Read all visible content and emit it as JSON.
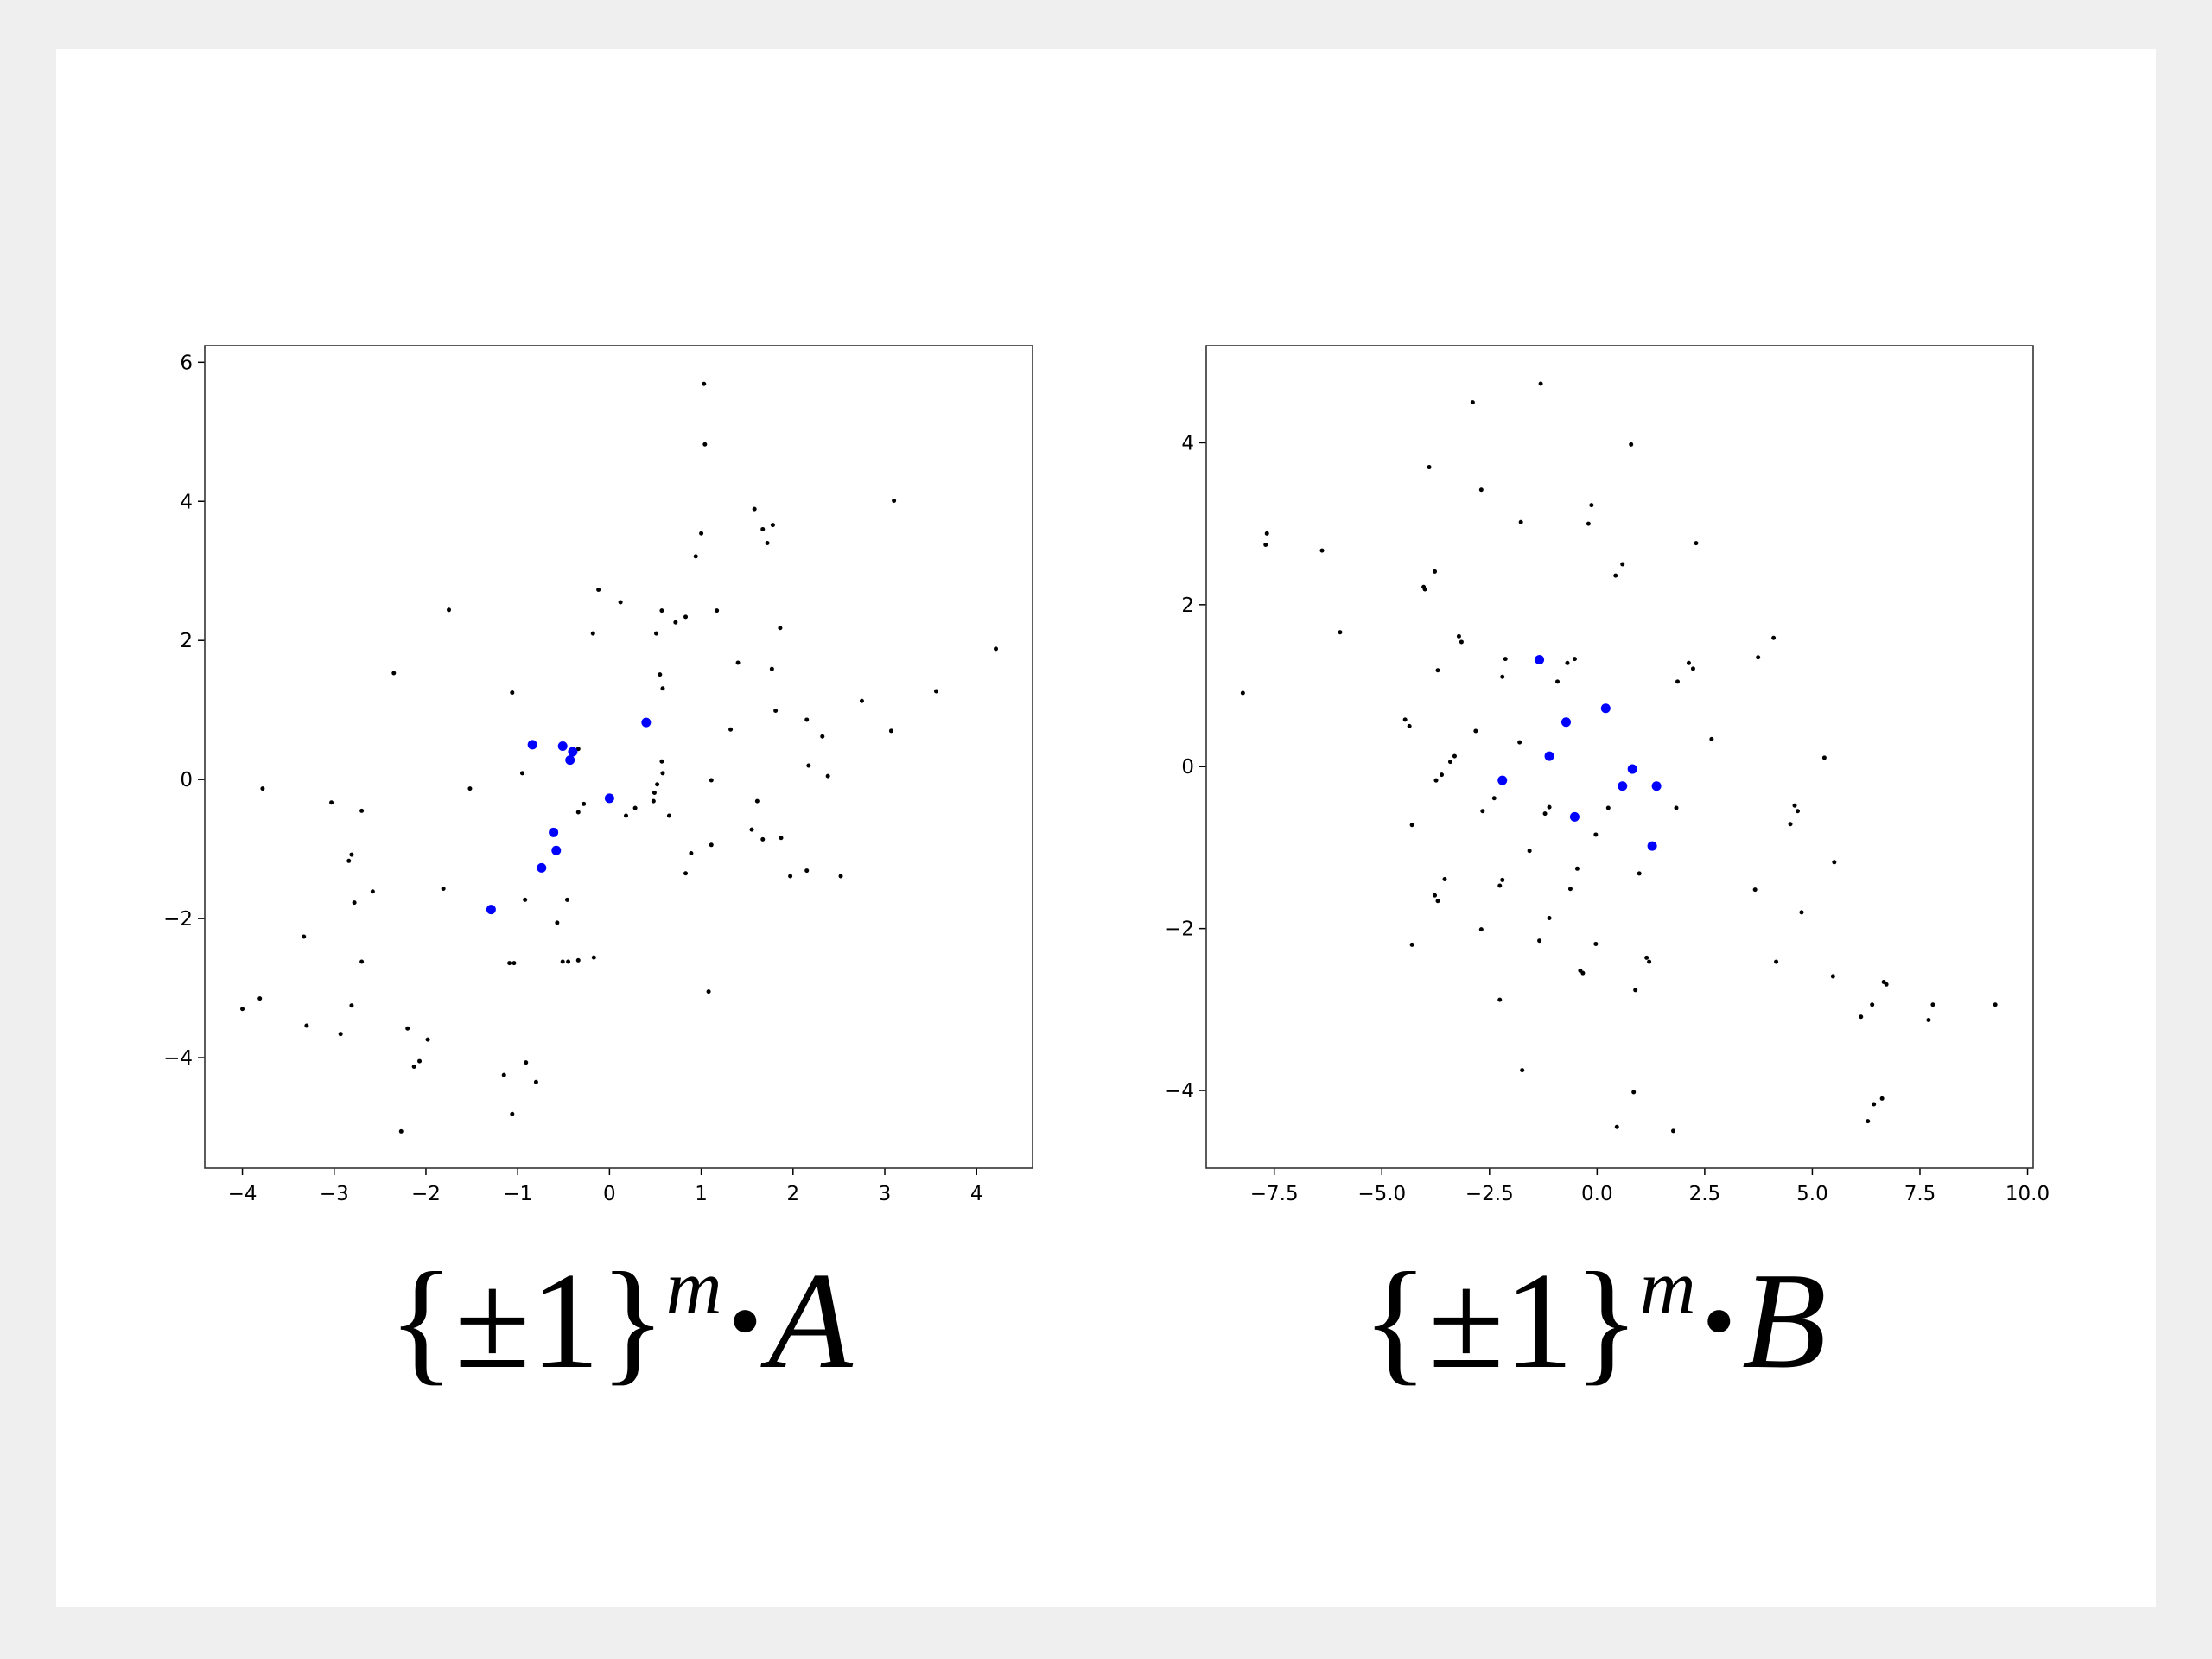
{
  "chart_data": [
    {
      "type": "scatter",
      "caption": {
        "base": "{±1}",
        "sup": "m",
        "op": "·",
        "letter": "A"
      },
      "xlim": [
        -4.41,
        4.61
      ],
      "ylim": [
        -5.59,
        6.24
      ],
      "xticks": [
        {
          "value": -4,
          "label": "−4"
        },
        {
          "value": -3,
          "label": "−3"
        },
        {
          "value": -2,
          "label": "−2"
        },
        {
          "value": -1,
          "label": "−1"
        },
        0,
        1,
        2,
        3,
        4
      ],
      "yticks": [
        {
          "value": -4,
          "label": "−4"
        },
        {
          "value": -2,
          "label": "−2"
        },
        0,
        2,
        4,
        6
      ],
      "series": [
        {
          "color": "#000000",
          "marker_size": 2.5,
          "x": [
            1.03,
            1.04,
            3.1,
            1.0,
            0.94,
            1.58,
            1.67,
            1.78,
            1.72,
            -1.75,
            -0.12,
            0.12,
            0.57,
            0.72,
            0.83,
            1.17,
            1.86,
            0.51,
            -0.18,
            -2.35,
            0.55,
            0.58,
            1.4,
            1.77,
            -1.06,
            2.75,
            3.56,
            4.21,
            1.81,
            2.15,
            3.07,
            1.32,
            2.32,
            -0.34,
            -0.95,
            0.57,
            0.58,
            0.52,
            0.49,
            1.11,
            2.17,
            2.38,
            -1.52,
            -3.78,
            -3.03,
            -2.7,
            0.48,
            0.28,
            -0.28,
            -0.34,
            0.18,
            0.65,
            1.61,
            -2.81,
            -2.84,
            -2.58,
            -2.78,
            -1.81,
            0.89,
            1.11,
            1.55,
            1.67,
            1.87,
            0.83,
            1.97,
            2.15,
            2.52,
            -0.92,
            -0.46,
            -0.57,
            -3.33,
            -2.7,
            -1.09,
            -1.04,
            -0.51,
            -0.45,
            -0.17,
            -0.34,
            1.08,
            -3.81,
            -4.0,
            -2.81,
            -3.3,
            -2.93,
            -2.2,
            -1.98,
            -2.07,
            -2.13,
            -1.15,
            -0.91,
            -0.8,
            -1.06,
            -2.27
          ],
          "values": [
            5.69,
            4.82,
            4.01,
            3.54,
            3.21,
            3.89,
            3.6,
            3.66,
            3.4,
            2.44,
            2.73,
            2.55,
            2.43,
            2.26,
            2.34,
            2.43,
            2.18,
            2.1,
            2.1,
            1.53,
            1.51,
            1.31,
            1.68,
            1.59,
            1.25,
            1.13,
            1.27,
            1.88,
            0.99,
            0.86,
            0.7,
            0.72,
            0.62,
            0.44,
            0.09,
            0.26,
            0.09,
            -0.07,
            -0.19,
            -0.01,
            0.2,
            0.05,
            -0.13,
            -0.13,
            -0.33,
            -0.45,
            -0.31,
            -0.41,
            -0.35,
            -0.47,
            -0.52,
            -0.52,
            -0.31,
            -1.08,
            -1.17,
            -1.61,
            -1.77,
            -1.57,
            -1.06,
            -0.94,
            -0.72,
            -0.86,
            -0.84,
            -1.35,
            -1.39,
            -1.31,
            -1.39,
            -1.73,
            -1.73,
            -2.06,
            -2.26,
            -2.62,
            -2.64,
            -2.64,
            -2.62,
            -2.62,
            -2.56,
            -2.6,
            -3.05,
            -3.15,
            -3.3,
            -3.25,
            -3.54,
            -3.66,
            -3.58,
            -3.74,
            -4.05,
            -4.13,
            -4.25,
            -4.07,
            -4.35,
            -4.81,
            -5.06
          ]
        },
        {
          "color": "#0000ff",
          "marker_size": 5.5,
          "x": [
            -0.84,
            -0.51,
            -0.4,
            -0.43,
            0.4,
            0.0,
            -0.61,
            -0.58,
            -0.74,
            -1.29
          ],
          "values": [
            0.5,
            0.48,
            0.4,
            0.28,
            0.82,
            -0.27,
            -0.76,
            -1.02,
            -1.27,
            -1.87
          ]
        }
      ]
    },
    {
      "type": "scatter",
      "caption": {
        "base": "{±1}",
        "sup": "m",
        "op": "·",
        "letter": "B"
      },
      "xlim": [
        -9.08,
        10.13
      ],
      "ylim": [
        -4.96,
        5.2
      ],
      "xticks": [
        {
          "value": -7.5,
          "label": "−7.5"
        },
        {
          "value": -5,
          "label": "−5.0"
        },
        {
          "value": -2.5,
          "label": "−2.5"
        },
        {
          "value": 0,
          "label": "0.0"
        },
        2.5,
        {
          "value": 5,
          "label": "5.0"
        },
        7.5,
        {
          "value": 10,
          "label": "10.0"
        }
      ],
      "yticks": [
        {
          "value": -4,
          "label": "−4"
        },
        {
          "value": -2,
          "label": "−2"
        },
        0,
        2,
        4
      ],
      "series": [
        {
          "color": "#000000",
          "marker_size": 2.5,
          "x": [
            -1.31,
            -2.89,
            0.79,
            -3.9,
            -2.69,
            -1.77,
            -0.13,
            -0.2,
            0.59,
            0.43,
            2.3,
            -7.67,
            -7.7,
            -6.39,
            -3.77,
            -4.03,
            -4.0,
            -5.97,
            -8.23,
            -3.21,
            -3.15,
            4.1,
            3.74,
            -2.13,
            -2.2,
            -0.69,
            -0.52,
            -0.92,
            -3.7,
            2.13,
            2.23,
            1.87,
            -2.82,
            -4.46,
            -4.36,
            -3.31,
            -3.41,
            -1.8,
            2.66,
            5.28,
            -3.61,
            -3.74,
            -2.39,
            -2.66,
            -1.11,
            -1.21,
            0.26,
            1.84,
            4.59,
            4.66,
            4.49,
            -4.3,
            -1.57,
            -0.03,
            5.51,
            -0.46,
            0.98,
            -0.62,
            -3.54,
            -2.2,
            -2.26,
            3.67,
            -3.77,
            -3.7,
            -1.11,
            4.75,
            -2.69,
            -1.34,
            -0.03,
            -4.3,
            1.15,
            1.21,
            4.16,
            -0.39,
            -0.33,
            5.48,
            0.89,
            6.66,
            6.72,
            -2.26,
            7.8,
            9.25,
            6.39,
            6.13,
            7.7,
            -1.74,
            0.85,
            6.62,
            6.43,
            6.29,
            0.46,
            1.77
          ],
          "values": [
            4.73,
            4.5,
            3.98,
            3.7,
            3.42,
            3.02,
            3.23,
            3.0,
            2.5,
            2.36,
            2.76,
            2.88,
            2.74,
            2.67,
            2.41,
            2.22,
            2.19,
            1.66,
            0.91,
            1.61,
            1.54,
            1.59,
            1.35,
            1.33,
            1.11,
            1.28,
            1.33,
            1.05,
            1.19,
            1.28,
            1.21,
            1.05,
            0.44,
            0.58,
            0.5,
            0.13,
            0.06,
            0.3,
            0.34,
            0.11,
            -0.1,
            -0.17,
            -0.39,
            -0.55,
            -0.5,
            -0.58,
            -0.51,
            -0.51,
            -0.48,
            -0.55,
            -0.71,
            -0.72,
            -1.04,
            -0.84,
            -1.18,
            -1.26,
            -1.32,
            -1.51,
            -1.39,
            -1.4,
            -1.47,
            -1.52,
            -1.59,
            -1.66,
            -1.87,
            -1.8,
            -2.01,
            -2.15,
            -2.19,
            -2.2,
            -2.36,
            -2.41,
            -2.41,
            -2.52,
            -2.55,
            -2.59,
            -2.76,
            -2.66,
            -2.69,
            -2.88,
            -2.94,
            -2.94,
            -2.94,
            -3.09,
            -3.13,
            -3.75,
            -4.02,
            -4.1,
            -4.17,
            -4.38,
            -4.45,
            -4.5
          ]
        },
        {
          "color": "#0000ff",
          "marker_size": 5.5,
          "x": [
            -1.34,
            0.2,
            -0.72,
            -1.11,
            0.82,
            0.59,
            1.38,
            -2.2,
            -0.52,
            1.28
          ],
          "values": [
            1.32,
            0.72,
            0.55,
            0.13,
            -0.03,
            -0.24,
            -0.24,
            -0.17,
            -0.62,
            -0.98
          ]
        }
      ]
    }
  ]
}
